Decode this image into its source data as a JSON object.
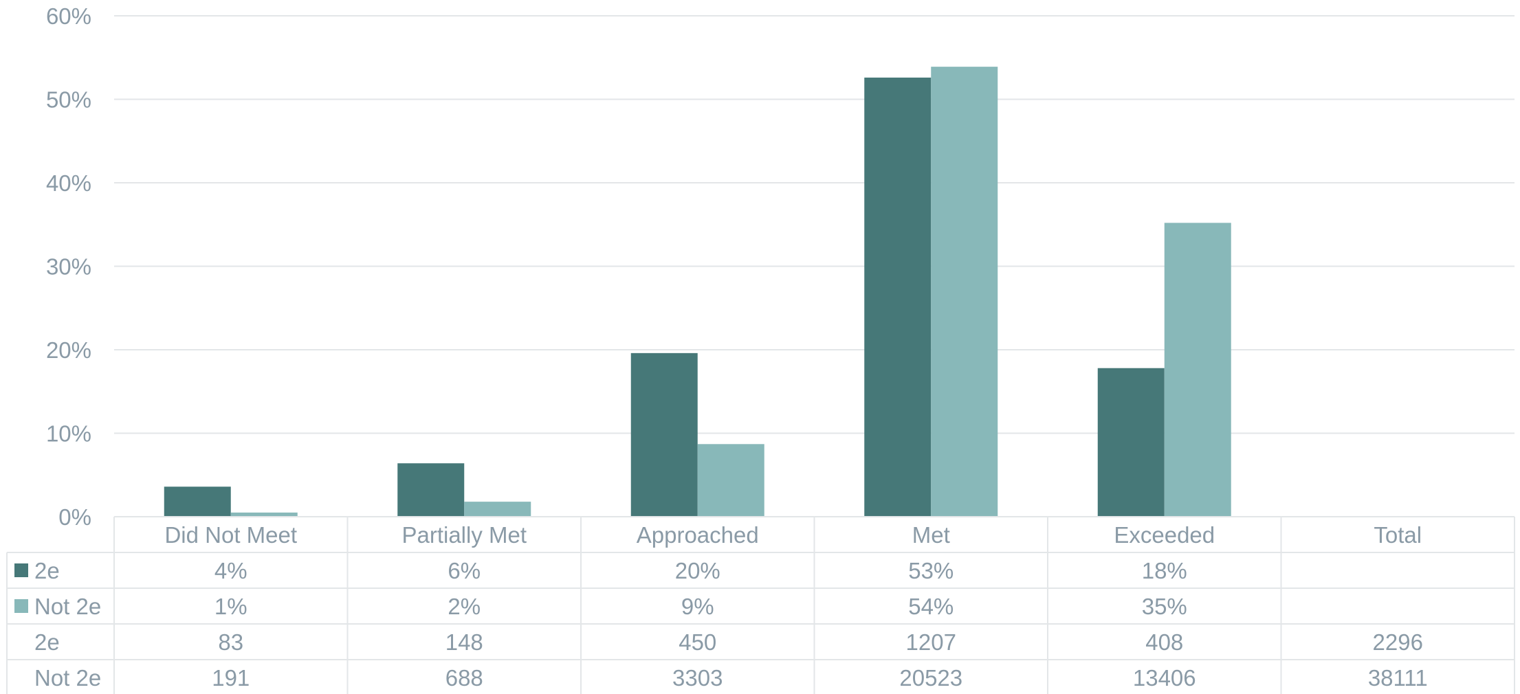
{
  "chart_data": {
    "type": "bar",
    "categories": [
      "Did Not Meet",
      "Partially Met",
      "Approached",
      "Met",
      "Exceeded",
      "Total"
    ],
    "ylim": [
      0,
      60
    ],
    "yticks": [
      "0%",
      "10%",
      "20%",
      "30%",
      "40%",
      "50%",
      "60%"
    ],
    "grid": true,
    "legend": "data-table",
    "series": [
      {
        "name": "2e",
        "color": "#467878",
        "values": [
          3.6,
          6.4,
          19.6,
          52.6,
          17.8,
          null
        ]
      },
      {
        "name": "Not 2e",
        "color": "#88b8b9",
        "values": [
          0.5,
          1.8,
          8.7,
          53.9,
          35.2,
          null
        ]
      }
    ],
    "table": {
      "rows": [
        {
          "label": "2e",
          "swatch": "#467878",
          "cells": [
            "4%",
            "6%",
            "20%",
            "53%",
            "18%",
            ""
          ]
        },
        {
          "label": "Not 2e",
          "swatch": "#88b8b9",
          "cells": [
            "1%",
            "2%",
            "9%",
            "54%",
            "35%",
            ""
          ]
        },
        {
          "label": "2e",
          "swatch": null,
          "cells": [
            "83",
            "148",
            "450",
            "1207",
            "408",
            "2296"
          ]
        },
        {
          "label": "Not 2e",
          "swatch": null,
          "cells": [
            "191",
            "688",
            "3303",
            "20523",
            "13406",
            "38111"
          ]
        }
      ]
    }
  }
}
